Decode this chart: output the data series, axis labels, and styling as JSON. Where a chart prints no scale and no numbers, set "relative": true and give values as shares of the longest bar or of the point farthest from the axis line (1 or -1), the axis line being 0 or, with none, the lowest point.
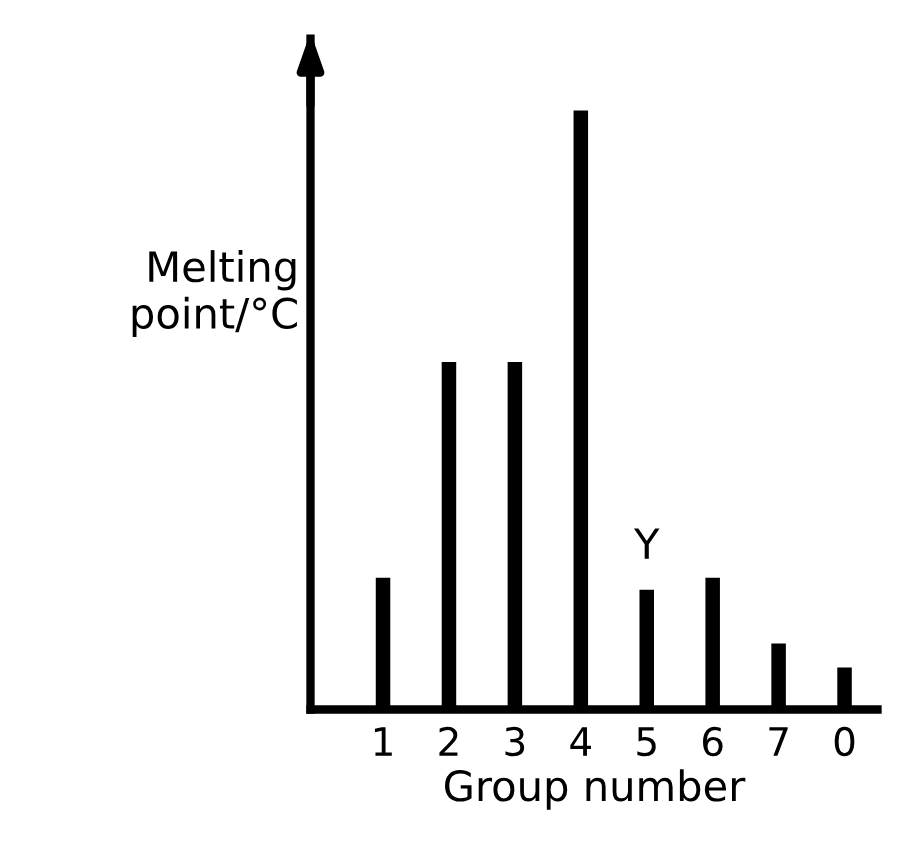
{
  "chart_data": {
    "type": "bar",
    "relative": true,
    "xlabel": "Group number",
    "ylabel": "Melting point/°C",
    "categories": [
      "1",
      "2",
      "3",
      "4",
      "5",
      "6",
      "7",
      "0"
    ],
    "values": [
      0.22,
      0.58,
      0.58,
      1,
      0.2,
      0.22,
      0.11,
      0.07
    ],
    "color": "#000000",
    "tick_labels": "x",
    "grid": false,
    "legend": false,
    "annotations": [
      {
        "text": "Y",
        "x": "5",
        "y": 0.2
      }
    ]
  }
}
